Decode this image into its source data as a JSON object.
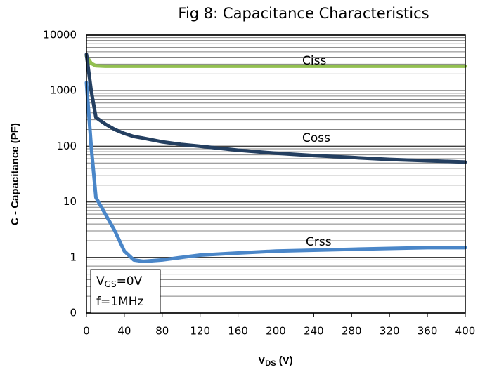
{
  "chart_data": {
    "type": "line",
    "title": "Fig 8: Capacitance Characteristics",
    "y_label": "C - Capacitance (PF)",
    "x_label": {
      "main": "V",
      "sub": "DS",
      "rest": " (V)"
    },
    "conditions": [
      {
        "main": "V",
        "sub": "GS",
        "rest": "=0V"
      },
      {
        "main": "f=1MHz"
      }
    ],
    "x": [
      0,
      5,
      10,
      20,
      30,
      40,
      50,
      60,
      80,
      100,
      120,
      160,
      200,
      240,
      280,
      320,
      360,
      400
    ],
    "series": [
      {
        "name": "Ciss",
        "color": "#92c050",
        "values": [
          4200,
          3100,
          2800,
          2750,
          2750,
          2750,
          2750,
          2750,
          2750,
          2750,
          2750,
          2750,
          2750,
          2750,
          2750,
          2750,
          2750,
          2750
        ]
      },
      {
        "name": "Coss",
        "color": "#243f60",
        "values": [
          4500,
          1000,
          330,
          250,
          200,
          170,
          150,
          140,
          120,
          108,
          100,
          85,
          75,
          68,
          63,
          58,
          55,
          52
        ]
      },
      {
        "name": "Crss",
        "color": "#4a86c8",
        "values": [
          1400,
          100,
          12,
          6,
          3,
          1.3,
          0.9,
          0.85,
          0.9,
          1.0,
          1.1,
          1.2,
          1.3,
          1.35,
          1.4,
          1.45,
          1.5,
          1.5
        ]
      }
    ],
    "xlim": [
      0,
      400
    ],
    "xticks": [
      0,
      40,
      80,
      120,
      160,
      200,
      240,
      280,
      320,
      360,
      400
    ],
    "ylim": [
      0.1,
      10000
    ],
    "yticks": [
      {
        "value": 0.1,
        "label": "0"
      },
      1,
      10,
      100,
      1000,
      10000
    ],
    "log_y": true,
    "grid": true
  }
}
